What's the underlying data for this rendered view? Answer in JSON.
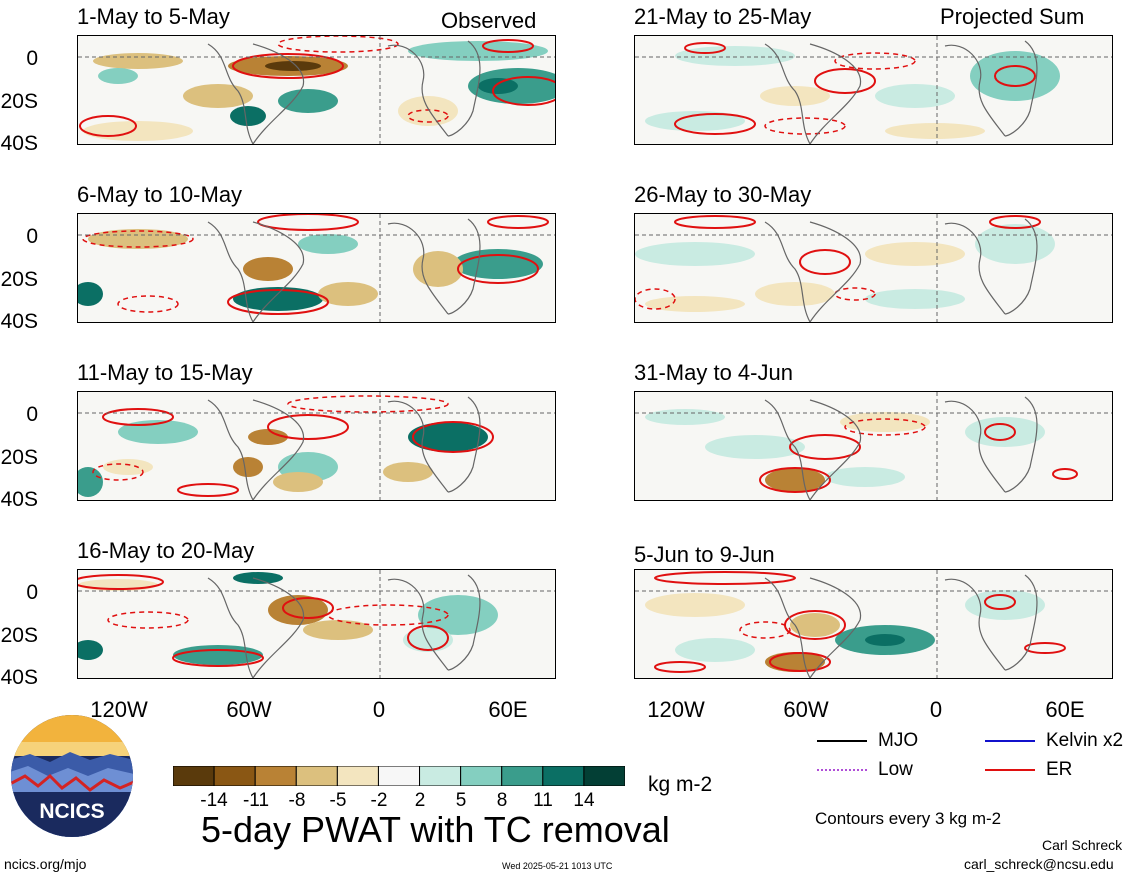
{
  "header": {
    "left_label": "Observed",
    "right_label": "Projected Sum"
  },
  "panels_left": [
    {
      "title": "1-May to 5-May"
    },
    {
      "title": "6-May to 10-May"
    },
    {
      "title": "11-May to 15-May"
    },
    {
      "title": "16-May to 20-May"
    }
  ],
  "panels_right": [
    {
      "title": "21-May to 25-May"
    },
    {
      "title": "26-May to 30-May"
    },
    {
      "title": "31-May to 4-Jun"
    },
    {
      "title": "5-Jun to 9-Jun"
    }
  ],
  "y_ticks": [
    "0",
    "20S",
    "40S"
  ],
  "x_ticks": [
    "120W",
    "60W",
    "0",
    "60E"
  ],
  "colorbar": {
    "ticks": [
      "-14",
      "-11",
      "-8",
      "-5",
      "-2",
      "2",
      "5",
      "8",
      "11",
      "14"
    ],
    "colors": [
      "#5a3a0c",
      "#8a5714",
      "#b98235",
      "#dcc07e",
      "#f3e5bf",
      "#f7f7f7",
      "#c9ebe2",
      "#84cfc0",
      "#3a9d8c",
      "#0b6f64",
      "#033f35"
    ],
    "unit": "kg m-2"
  },
  "legend": {
    "mjo": "MJO",
    "kelvin": "Kelvin x2",
    "low": "Low",
    "er": "ER",
    "mjo_color": "#000000",
    "kelvin_color": "#1111cc",
    "low_color": "#b04ed8",
    "er_color": "#e01010",
    "contours": "Contours every 3 kg m-2"
  },
  "title": "5-day PWAT with TC removal",
  "logo": {
    "text": "NCICS"
  },
  "footer": {
    "left": "ncics.org/mjo",
    "center": "Wed 2025-05-21 1013 UTC",
    "author": "Carl Schreck",
    "email": "carl_schreck@ncsu.edu"
  }
}
